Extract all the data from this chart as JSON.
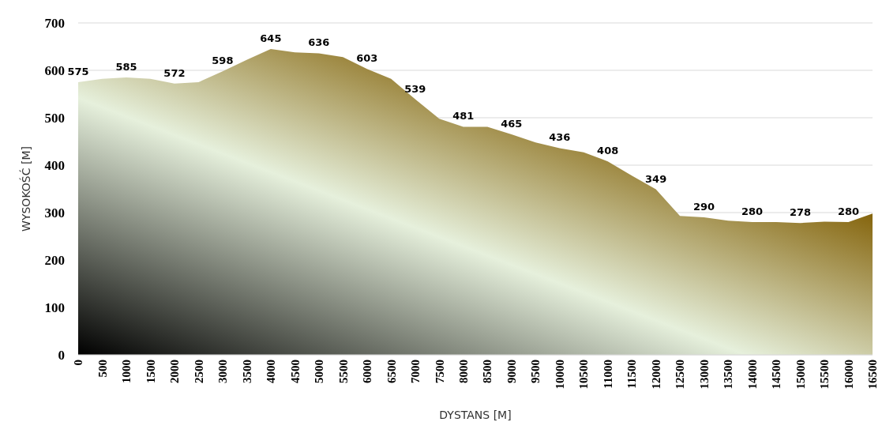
{
  "chart_data": {
    "type": "area",
    "xlabel": "DYSTANS [M]",
    "ylabel": "WYSOKOŚĆ [M]",
    "x": [
      0,
      500,
      1000,
      1500,
      2000,
      2500,
      3000,
      3500,
      4000,
      4500,
      5000,
      5500,
      6000,
      6500,
      7000,
      7500,
      8000,
      8500,
      9000,
      9500,
      10000,
      10500,
      11000,
      11500,
      12000,
      12500,
      13000,
      13500,
      14000,
      14500,
      15000,
      15500,
      16000,
      16500
    ],
    "series": [
      {
        "color": "#7f5c00",
        "values": [
          575,
          582,
          585,
          582,
          572,
          575,
          598,
          622,
          645,
          638,
          636,
          628,
          603,
          582,
          539,
          498,
          481,
          481,
          465,
          448,
          436,
          427,
          408,
          378,
          349,
          293,
          290,
          283,
          280,
          280,
          278,
          281,
          280,
          298
        ],
        "value_labels": [
          "575",
          null,
          "585",
          null,
          "572",
          null,
          "598",
          null,
          "645",
          null,
          "636",
          null,
          "603",
          null,
          "539",
          null,
          "481",
          null,
          "465",
          null,
          "436",
          null,
          "408",
          null,
          "349",
          null,
          "290",
          null,
          "280",
          null,
          "278",
          null,
          "280",
          null
        ]
      }
    ],
    "xlim": [
      0,
      16500
    ],
    "xticks": [
      0,
      500,
      1000,
      1500,
      2000,
      2500,
      3000,
      3500,
      4000,
      4500,
      5000,
      5500,
      6000,
      6500,
      7000,
      7500,
      8000,
      8500,
      9000,
      9500,
      10000,
      10500,
      11000,
      11500,
      12000,
      12500,
      13000,
      13500,
      14000,
      14500,
      15000,
      15500,
      16000,
      16500
    ],
    "ylim": [
      0,
      700
    ],
    "yticks": [
      0,
      100,
      200,
      300,
      400,
      500,
      600,
      700
    ],
    "grid": "y"
  }
}
